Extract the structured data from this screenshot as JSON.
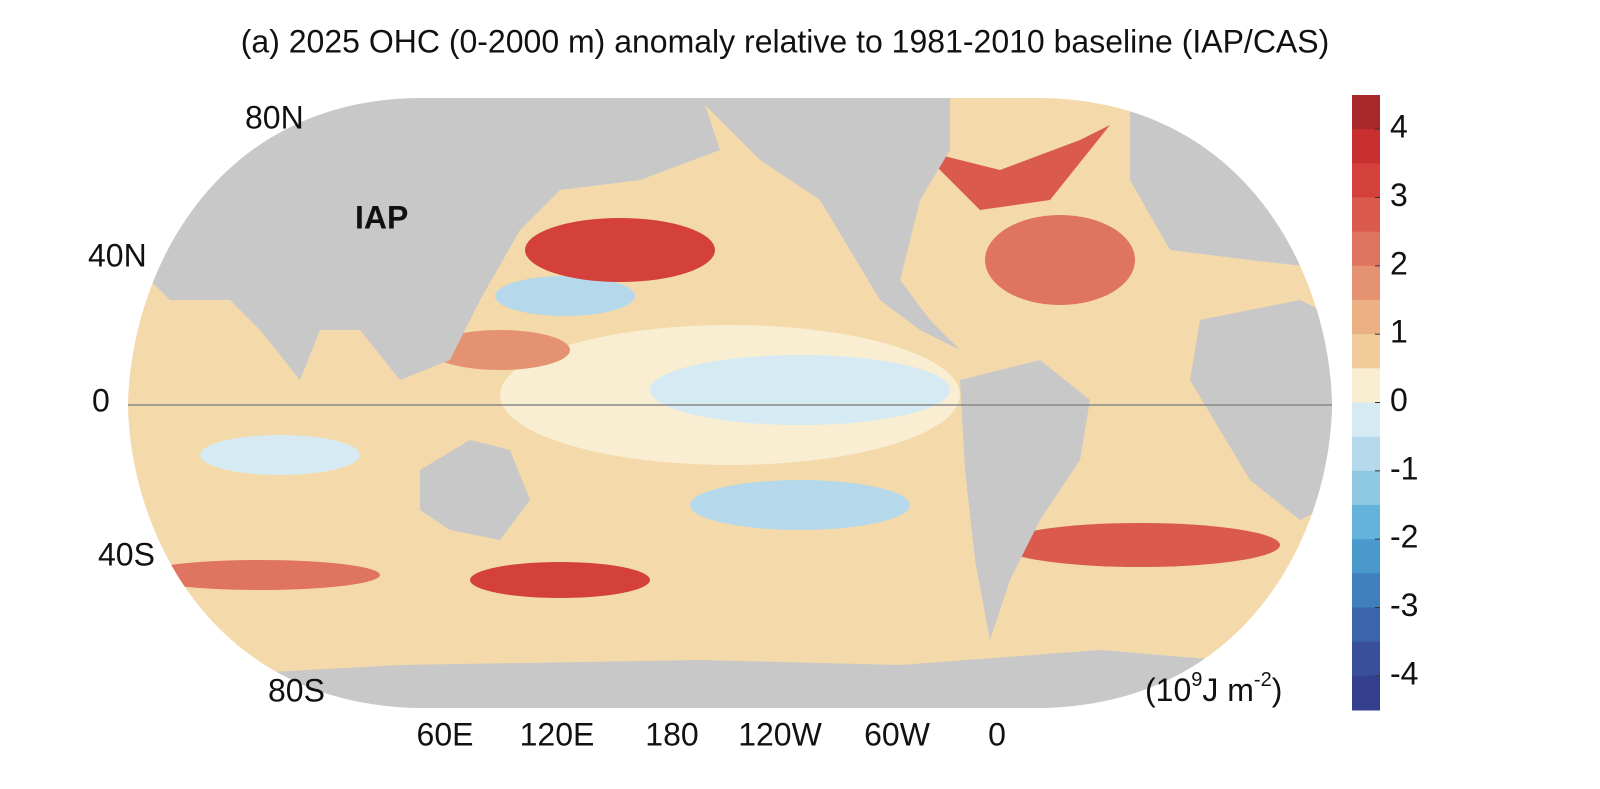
{
  "title": "(a) 2025 OHC (0-2000 m) anomaly relative to 1981-2010 baseline (IAP/CAS)",
  "map": {
    "label": "IAP",
    "lat_labels": [
      "80N",
      "40N",
      "0",
      "40S",
      "80S"
    ],
    "lon_labels": [
      "60E",
      "120E",
      "180",
      "120W",
      "60W",
      "0"
    ]
  },
  "colorbar": {
    "clim": [
      -4.5,
      4.5
    ],
    "ticks": [
      4,
      3,
      2,
      1,
      0,
      -1,
      -2,
      -3,
      -4
    ],
    "colors": [
      "#a8292b",
      "#c8302f",
      "#d4403a",
      "#da5a4d",
      "#df7460",
      "#e59273",
      "#ebb084",
      "#f2cb9b",
      "#f9edd2",
      "#d6eaf3",
      "#b5d9ea",
      "#8ec7e0",
      "#63b3db",
      "#4a99cc",
      "#3f7fbd",
      "#3a64ab",
      "#3a4f9c",
      "#34408e"
    ],
    "units": {
      "open": "(10",
      "exp": "9",
      "mid": "J m",
      "exp2": "-2",
      "close": ")"
    }
  }
}
